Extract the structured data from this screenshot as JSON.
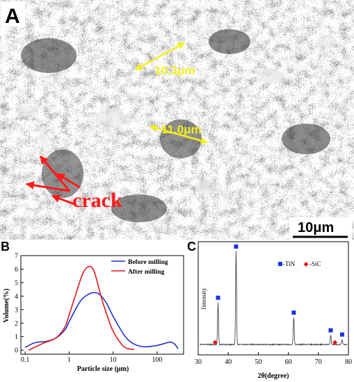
{
  "panels": {
    "a": {
      "letter": "A",
      "measure_1": "10.3μm",
      "measure_2": "11.0μm",
      "crack_label": "crack",
      "scale_bar": "10μm"
    },
    "b": {
      "letter": "B",
      "xlabel": "Particle size (μm)",
      "ylabel": "Volume(%)"
    },
    "c": {
      "letter": "C",
      "xlabel": "2θ(degree)",
      "ylabel": "Intensity"
    }
  },
  "colors": {
    "measure_arrows": "#f4ef1c",
    "crack_arrows": "#ff1a1a",
    "before_milling": "#1f2fd0",
    "after_milling": "#e01818",
    "tin_marker": "#1a33e6",
    "sic_marker": "#e01818"
  },
  "chart_data": [
    {
      "type": "line",
      "xlabel": "Particle size (μm)",
      "ylabel": "Volume(%)",
      "x_scale": "log",
      "xlim": [
        0.08,
        400
      ],
      "ylim": [
        -0.3,
        7
      ],
      "x_ticks": [
        "0.1",
        "1",
        "10",
        "100"
      ],
      "y_ticks": [
        "0",
        "1",
        "2",
        "3",
        "4",
        "5",
        "6",
        "7"
      ],
      "legend_position": "top-right",
      "series": [
        {
          "name": "Before milling",
          "x": [
            0.1,
            0.15,
            0.2,
            0.3,
            0.5,
            0.8,
            1,
            1.5,
            2,
            3,
            4,
            5,
            7,
            10,
            15,
            20,
            30,
            50,
            80,
            100,
            150,
            200,
            250,
            300
          ],
          "y": [
            0.2,
            0.5,
            0.6,
            0.65,
            0.9,
            1.5,
            2.1,
            3.2,
            3.8,
            4.2,
            4.25,
            4.1,
            3.5,
            2.5,
            1.5,
            0.9,
            0.45,
            0.25,
            0.3,
            0.35,
            0.5,
            0.6,
            0.45,
            0.1
          ]
        },
        {
          "name": "After milling",
          "x": [
            0.12,
            0.15,
            0.2,
            0.3,
            0.5,
            0.8,
            1,
            1.5,
            2,
            2.5,
            3,
            3.5,
            4,
            5,
            6,
            8,
            10,
            15,
            20,
            30
          ],
          "y": [
            0.0,
            0.15,
            0.35,
            0.6,
            0.9,
            1.7,
            2.6,
            4.4,
            5.6,
            6.1,
            6.2,
            6.0,
            5.5,
            4.3,
            3.4,
            2.2,
            1.4,
            0.5,
            0.15,
            0.05
          ]
        }
      ]
    },
    {
      "type": "line",
      "xlabel": "2θ(degree)",
      "ylabel": "Intensity",
      "xlim": [
        30,
        80
      ],
      "x_ticks": [
        "30",
        "40",
        "50",
        "60",
        "70",
        "80"
      ],
      "legend_position": "top-right",
      "legend": [
        "-TiN",
        "-SiC"
      ],
      "peaks": [
        {
          "x": 36.6,
          "height": 0.45,
          "phase": "TiN"
        },
        {
          "x": 42.6,
          "height": 1.0,
          "phase": "TiN"
        },
        {
          "x": 61.8,
          "height": 0.29,
          "phase": "TiN"
        },
        {
          "x": 74.1,
          "height": 0.1,
          "phase": "TiN"
        },
        {
          "x": 77.9,
          "height": 0.055,
          "phase": "TiN"
        },
        {
          "x": 35.6,
          "height": 0.03,
          "phase": "SiC"
        },
        {
          "x": 75.5,
          "height": 0.03,
          "phase": "SiC"
        }
      ]
    }
  ]
}
